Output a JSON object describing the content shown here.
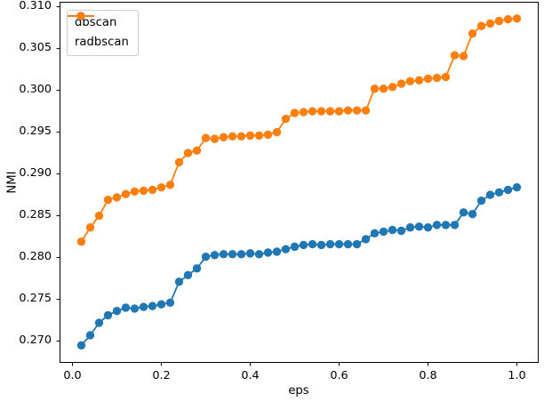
{
  "chart_data": {
    "type": "line",
    "title": "",
    "xlabel": "eps",
    "ylabel": "NMI",
    "grid": false,
    "legend_position": "upper left",
    "marker": "circle",
    "xlim": [
      -0.029,
      1.049
    ],
    "ylim": [
      0.2674,
      0.3106
    ],
    "xticks": [
      0.0,
      0.2,
      0.4,
      0.6,
      0.8,
      1.0
    ],
    "xtick_labels": [
      "0.0",
      "0.2",
      "0.4",
      "0.6",
      "0.8",
      "1.0"
    ],
    "yticks": [
      0.27,
      0.275,
      0.28,
      0.285,
      0.29,
      0.295,
      0.3,
      0.305,
      0.31
    ],
    "ytick_labels": [
      "0.270",
      "0.275",
      "0.280",
      "0.285",
      "0.290",
      "0.295",
      "0.300",
      "0.305",
      "0.310"
    ],
    "x": [
      0.02,
      0.04,
      0.06,
      0.08,
      0.1,
      0.12,
      0.14,
      0.16,
      0.18,
      0.2,
      0.22,
      0.24,
      0.26,
      0.28,
      0.3,
      0.32,
      0.34,
      0.36,
      0.38,
      0.4,
      0.42,
      0.44,
      0.46,
      0.48,
      0.5,
      0.52,
      0.54,
      0.56,
      0.58,
      0.6,
      0.62,
      0.64,
      0.66,
      0.68,
      0.7,
      0.72,
      0.74,
      0.76,
      0.78,
      0.8,
      0.82,
      0.84,
      0.86,
      0.88,
      0.9,
      0.92,
      0.94,
      0.96,
      0.98,
      1.0
    ],
    "series": [
      {
        "name": "dbscan",
        "color": "#1f77b4",
        "values": [
          0.2695,
          0.2707,
          0.2722,
          0.2731,
          0.2736,
          0.274,
          0.2739,
          0.2741,
          0.2742,
          0.2744,
          0.2746,
          0.2771,
          0.2779,
          0.2787,
          0.2801,
          0.2803,
          0.2804,
          0.2804,
          0.2804,
          0.2805,
          0.2804,
          0.2806,
          0.2807,
          0.281,
          0.2813,
          0.2815,
          0.2816,
          0.2815,
          0.2816,
          0.2816,
          0.2816,
          0.2816,
          0.2822,
          0.2829,
          0.2831,
          0.2833,
          0.2832,
          0.2836,
          0.2837,
          0.2836,
          0.2839,
          0.2839,
          0.2839,
          0.2854,
          0.2852,
          0.2868,
          0.2875,
          0.2878,
          0.2881,
          0.2884
        ]
      },
      {
        "name": "radbscan",
        "color": "#ff7f0e",
        "values": [
          0.2819,
          0.2836,
          0.285,
          0.2869,
          0.2872,
          0.2876,
          0.2879,
          0.288,
          0.2881,
          0.2884,
          0.2887,
          0.2914,
          0.2925,
          0.2928,
          0.2943,
          0.2942,
          0.2944,
          0.2945,
          0.2945,
          0.2946,
          0.2946,
          0.2947,
          0.295,
          0.2966,
          0.2973,
          0.2974,
          0.2975,
          0.2975,
          0.2975,
          0.2975,
          0.2976,
          0.2976,
          0.2976,
          0.3002,
          0.3002,
          0.3004,
          0.3008,
          0.3011,
          0.3012,
          0.3014,
          0.3015,
          0.3016,
          0.3042,
          0.3041,
          0.3068,
          0.3077,
          0.308,
          0.3083,
          0.3085,
          0.3086
        ]
      }
    ],
    "style": {
      "spine_color": "#000000",
      "background": "#ffffff",
      "marker_radius": 4.7,
      "line_width": 1.8
    }
  },
  "legend": {
    "items": [
      {
        "label": "dbscan"
      },
      {
        "label": "radbscan"
      }
    ]
  }
}
